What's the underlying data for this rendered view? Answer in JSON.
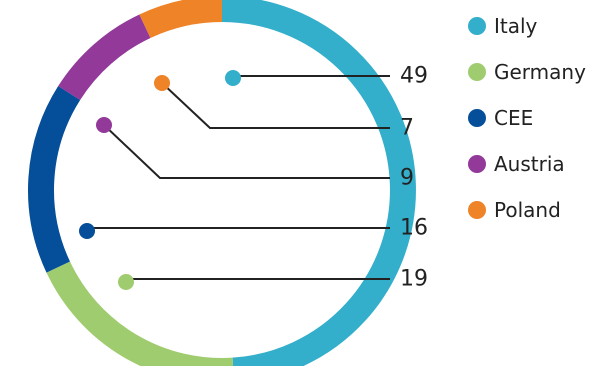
{
  "chart_data": {
    "type": "pie",
    "style": "donut-ring",
    "categories": [
      "Italy",
      "Germany",
      "CEE",
      "Austria",
      "Poland"
    ],
    "values": [
      49,
      19,
      16,
      9,
      7
    ],
    "colors": {
      "Italy": "#33AECB",
      "Germany": "#A0CC70",
      "CEE": "#054E99",
      "Austria": "#92399A",
      "Poland": "#EE8327"
    },
    "label_order": [
      "Italy",
      "Poland",
      "Austria",
      "CEE",
      "Germany"
    ],
    "legend": {
      "placement": "right",
      "entries": [
        "Italy",
        "Germany",
        "CEE",
        "Austria",
        "Poland"
      ]
    },
    "line_color": "#222222"
  }
}
